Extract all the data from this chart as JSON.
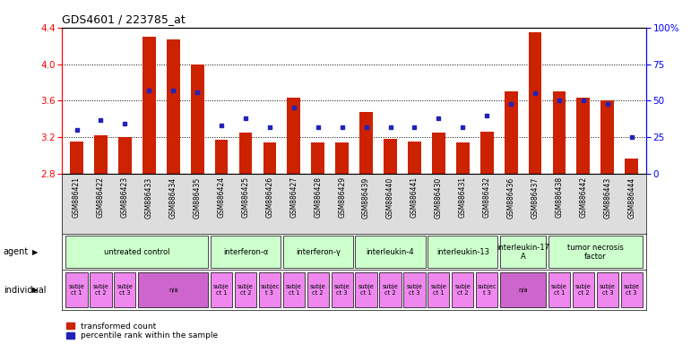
{
  "title": "GDS4601 / 223785_at",
  "gsm_labels": [
    "GSM886421",
    "GSM886422",
    "GSM886423",
    "GSM886433",
    "GSM886434",
    "GSM886435",
    "GSM886424",
    "GSM886425",
    "GSM886426",
    "GSM886427",
    "GSM886428",
    "GSM886429",
    "GSM886439",
    "GSM886440",
    "GSM886441",
    "GSM886430",
    "GSM886431",
    "GSM886432",
    "GSM886436",
    "GSM886437",
    "GSM886438",
    "GSM886442",
    "GSM886443",
    "GSM886444"
  ],
  "red_values": [
    3.15,
    3.22,
    3.2,
    4.3,
    4.27,
    4.0,
    3.17,
    3.25,
    3.14,
    3.63,
    3.14,
    3.14,
    3.48,
    3.18,
    3.15,
    3.25,
    3.14,
    3.26,
    3.7,
    4.35,
    3.7,
    3.63,
    3.6,
    2.97
  ],
  "blue_percentiles": [
    30,
    37,
    34,
    57,
    57,
    56,
    33,
    38,
    32,
    45,
    32,
    32,
    32,
    32,
    32,
    38,
    32,
    40,
    48,
    55,
    50,
    50,
    48,
    25
  ],
  "y_min": 2.8,
  "y_max": 4.4,
  "y_ticks_left": [
    2.8,
    3.2,
    3.6,
    4.0,
    4.4
  ],
  "y_ticks_right": [
    0,
    25,
    50,
    75,
    100
  ],
  "bar_color": "#cc2200",
  "dot_color": "#2222bb",
  "agent_groups": [
    {
      "label": "untreated control",
      "start": 0,
      "end": 5
    },
    {
      "label": "interferon-α",
      "start": 6,
      "end": 8
    },
    {
      "label": "interferon-γ",
      "start": 9,
      "end": 11
    },
    {
      "label": "interleukin-4",
      "start": 12,
      "end": 14
    },
    {
      "label": "interleukin-13",
      "start": 15,
      "end": 17
    },
    {
      "label": "interleukin-17\nA",
      "start": 18,
      "end": 19
    },
    {
      "label": "tumor necrosis\nfactor",
      "start": 20,
      "end": 23
    }
  ],
  "individual_groups": [
    {
      "start": 0,
      "end": 0,
      "label": "subje\nct 1",
      "na": false
    },
    {
      "start": 1,
      "end": 1,
      "label": "subje\nct 2",
      "na": false
    },
    {
      "start": 2,
      "end": 2,
      "label": "subje\nct 3",
      "na": false
    },
    {
      "start": 3,
      "end": 5,
      "label": "n/a",
      "na": true
    },
    {
      "start": 6,
      "end": 6,
      "label": "subje\nct 1",
      "na": false
    },
    {
      "start": 7,
      "end": 7,
      "label": "subje\nct 2",
      "na": false
    },
    {
      "start": 8,
      "end": 8,
      "label": "subjec\nt 3",
      "na": false
    },
    {
      "start": 9,
      "end": 9,
      "label": "subje\nct 1",
      "na": false
    },
    {
      "start": 10,
      "end": 10,
      "label": "subje\nct 2",
      "na": false
    },
    {
      "start": 11,
      "end": 11,
      "label": "subje\nct 3",
      "na": false
    },
    {
      "start": 12,
      "end": 12,
      "label": "subje\nct 1",
      "na": false
    },
    {
      "start": 13,
      "end": 13,
      "label": "subje\nct 2",
      "na": false
    },
    {
      "start": 14,
      "end": 14,
      "label": "subje\nct 3",
      "na": false
    },
    {
      "start": 15,
      "end": 15,
      "label": "subje\nct 1",
      "na": false
    },
    {
      "start": 16,
      "end": 16,
      "label": "subje\nct 2",
      "na": false
    },
    {
      "start": 17,
      "end": 17,
      "label": "subjec\nt 3",
      "na": false
    },
    {
      "start": 18,
      "end": 19,
      "label": "n/a",
      "na": true
    },
    {
      "start": 20,
      "end": 20,
      "label": "subje\nct 1",
      "na": false
    },
    {
      "start": 21,
      "end": 21,
      "label": "subje\nct 2",
      "na": false
    },
    {
      "start": 22,
      "end": 22,
      "label": "subje\nct 3",
      "na": false
    },
    {
      "start": 23,
      "end": 23,
      "label": "subje\nct 3",
      "na": false
    }
  ],
  "legend_red_label": "transformed count",
  "legend_blue_label": "percentile rank within the sample",
  "light_green": "#ccffcc",
  "light_purple": "#ee88ee",
  "na_purple": "#cc66cc",
  "gsm_bg": "#dddddd"
}
